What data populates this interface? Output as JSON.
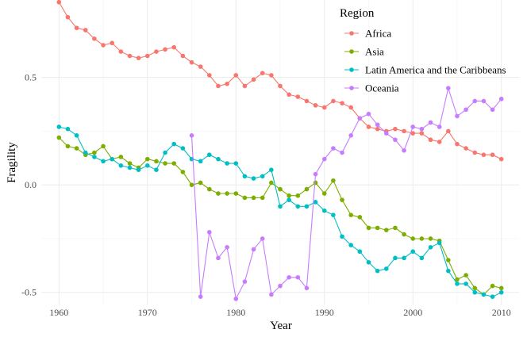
{
  "chart_data": {
    "type": "line",
    "xlabel": "Year",
    "ylabel": "Fragility",
    "xlim": [
      1958,
      2012
    ],
    "ylim": [
      -0.56,
      0.86
    ],
    "x_ticks": [
      1960,
      1970,
      1980,
      1990,
      2000,
      2010
    ],
    "y_ticks": [
      -0.5,
      0.0,
      0.5
    ],
    "y_tick_labels": [
      "-0.5",
      "0.0",
      "0.5"
    ],
    "grid": true,
    "legend": {
      "title": "Region",
      "position": "top-right"
    },
    "series": [
      {
        "name": "Africa",
        "color": "#F8766D",
        "points": [
          [
            1960,
            0.85
          ],
          [
            1961,
            0.78
          ],
          [
            1962,
            0.73
          ],
          [
            1963,
            0.72
          ],
          [
            1964,
            0.68
          ],
          [
            1965,
            0.65
          ],
          [
            1966,
            0.66
          ],
          [
            1967,
            0.62
          ],
          [
            1968,
            0.6
          ],
          [
            1969,
            0.59
          ],
          [
            1970,
            0.6
          ],
          [
            1971,
            0.62
          ],
          [
            1972,
            0.63
          ],
          [
            1973,
            0.64
          ],
          [
            1974,
            0.6
          ],
          [
            1975,
            0.57
          ],
          [
            1976,
            0.55
          ],
          [
            1977,
            0.51
          ],
          [
            1978,
            0.46
          ],
          [
            1979,
            0.47
          ],
          [
            1980,
            0.51
          ],
          [
            1981,
            0.46
          ],
          [
            1982,
            0.49
          ],
          [
            1983,
            0.52
          ],
          [
            1984,
            0.51
          ],
          [
            1985,
            0.46
          ],
          [
            1986,
            0.42
          ],
          [
            1987,
            0.41
          ],
          [
            1988,
            0.39
          ],
          [
            1989,
            0.37
          ],
          [
            1990,
            0.36
          ],
          [
            1991,
            0.39
          ],
          [
            1992,
            0.38
          ],
          [
            1993,
            0.36
          ],
          [
            1994,
            0.31
          ],
          [
            1995,
            0.27
          ],
          [
            1996,
            0.26
          ],
          [
            1997,
            0.25
          ],
          [
            1998,
            0.26
          ],
          [
            1999,
            0.25
          ],
          [
            2000,
            0.24
          ],
          [
            2001,
            0.24
          ],
          [
            2002,
            0.21
          ],
          [
            2003,
            0.2
          ],
          [
            2004,
            0.25
          ],
          [
            2005,
            0.19
          ],
          [
            2006,
            0.17
          ],
          [
            2007,
            0.15
          ],
          [
            2008,
            0.14
          ],
          [
            2009,
            0.14
          ],
          [
            2010,
            0.12
          ]
        ]
      },
      {
        "name": "Asia",
        "color": "#7CAE00",
        "points": [
          [
            1960,
            0.22
          ],
          [
            1961,
            0.18
          ],
          [
            1962,
            0.17
          ],
          [
            1963,
            0.14
          ],
          [
            1964,
            0.15
          ],
          [
            1965,
            0.18
          ],
          [
            1966,
            0.12
          ],
          [
            1967,
            0.13
          ],
          [
            1968,
            0.1
          ],
          [
            1969,
            0.08
          ],
          [
            1970,
            0.12
          ],
          [
            1971,
            0.11
          ],
          [
            1972,
            0.1
          ],
          [
            1973,
            0.1
          ],
          [
            1974,
            0.06
          ],
          [
            1975,
            0.0
          ],
          [
            1976,
            0.01
          ],
          [
            1977,
            -0.02
          ],
          [
            1978,
            -0.04
          ],
          [
            1979,
            -0.04
          ],
          [
            1980,
            -0.04
          ],
          [
            1981,
            -0.06
          ],
          [
            1982,
            -0.06
          ],
          [
            1983,
            -0.06
          ],
          [
            1984,
            0.01
          ],
          [
            1985,
            -0.02
          ],
          [
            1986,
            -0.05
          ],
          [
            1987,
            -0.05
          ],
          [
            1988,
            -0.02
          ],
          [
            1989,
            0.01
          ],
          [
            1990,
            -0.04
          ],
          [
            1991,
            0.02
          ],
          [
            1992,
            -0.07
          ],
          [
            1993,
            -0.14
          ],
          [
            1994,
            -0.15
          ],
          [
            1995,
            -0.2
          ],
          [
            1996,
            -0.2
          ],
          [
            1997,
            -0.21
          ],
          [
            1998,
            -0.2
          ],
          [
            1999,
            -0.23
          ],
          [
            2000,
            -0.25
          ],
          [
            2001,
            -0.25
          ],
          [
            2002,
            -0.25
          ],
          [
            2003,
            -0.26
          ],
          [
            2004,
            -0.35
          ],
          [
            2005,
            -0.44
          ],
          [
            2006,
            -0.42
          ],
          [
            2007,
            -0.48
          ],
          [
            2008,
            -0.51
          ],
          [
            2009,
            -0.47
          ],
          [
            2010,
            -0.48
          ]
        ]
      },
      {
        "name": "Latin America and the Caribbeans",
        "color": "#00BFC4",
        "points": [
          [
            1960,
            0.27
          ],
          [
            1961,
            0.26
          ],
          [
            1962,
            0.23
          ],
          [
            1963,
            0.15
          ],
          [
            1964,
            0.13
          ],
          [
            1965,
            0.11
          ],
          [
            1966,
            0.12
          ],
          [
            1967,
            0.09
          ],
          [
            1968,
            0.08
          ],
          [
            1969,
            0.07
          ],
          [
            1970,
            0.09
          ],
          [
            1971,
            0.07
          ],
          [
            1972,
            0.15
          ],
          [
            1973,
            0.19
          ],
          [
            1974,
            0.17
          ],
          [
            1975,
            0.12
          ],
          [
            1976,
            0.11
          ],
          [
            1977,
            0.14
          ],
          [
            1978,
            0.12
          ],
          [
            1979,
            0.1
          ],
          [
            1980,
            0.1
          ],
          [
            1981,
            0.04
          ],
          [
            1982,
            0.03
          ],
          [
            1983,
            0.04
          ],
          [
            1984,
            0.07
          ],
          [
            1985,
            -0.1
          ],
          [
            1986,
            -0.07
          ],
          [
            1987,
            -0.1
          ],
          [
            1988,
            -0.1
          ],
          [
            1989,
            -0.08
          ],
          [
            1990,
            -0.12
          ],
          [
            1991,
            -0.14
          ],
          [
            1992,
            -0.24
          ],
          [
            1993,
            -0.28
          ],
          [
            1994,
            -0.31
          ],
          [
            1995,
            -0.36
          ],
          [
            1996,
            -0.4
          ],
          [
            1997,
            -0.39
          ],
          [
            1998,
            -0.34
          ],
          [
            1999,
            -0.34
          ],
          [
            2000,
            -0.31
          ],
          [
            2001,
            -0.34
          ],
          [
            2002,
            -0.29
          ],
          [
            2003,
            -0.27
          ],
          [
            2004,
            -0.4
          ],
          [
            2005,
            -0.46
          ],
          [
            2006,
            -0.46
          ],
          [
            2007,
            -0.5
          ],
          [
            2008,
            -0.51
          ],
          [
            2009,
            -0.52
          ],
          [
            2010,
            -0.5
          ]
        ]
      },
      {
        "name": "Oceania",
        "color": "#C77CFF",
        "points": [
          [
            1975,
            0.23
          ],
          [
            1976,
            -0.52
          ],
          [
            1977,
            -0.22
          ],
          [
            1978,
            -0.34
          ],
          [
            1979,
            -0.29
          ],
          [
            1980,
            -0.53
          ],
          [
            1981,
            -0.45
          ],
          [
            1982,
            -0.3
          ],
          [
            1983,
            -0.25
          ],
          [
            1984,
            -0.51
          ],
          [
            1985,
            -0.47
          ],
          [
            1986,
            -0.43
          ],
          [
            1987,
            -0.43
          ],
          [
            1988,
            -0.48
          ],
          [
            1989,
            0.05
          ],
          [
            1990,
            0.12
          ],
          [
            1991,
            0.17
          ],
          [
            1992,
            0.15
          ],
          [
            1993,
            0.23
          ],
          [
            1994,
            0.31
          ],
          [
            1995,
            0.33
          ],
          [
            1996,
            0.28
          ],
          [
            1997,
            0.24
          ],
          [
            1998,
            0.21
          ],
          [
            1999,
            0.16
          ],
          [
            2000,
            0.27
          ],
          [
            2001,
            0.26
          ],
          [
            2002,
            0.29
          ],
          [
            2003,
            0.27
          ],
          [
            2004,
            0.45
          ],
          [
            2005,
            0.32
          ],
          [
            2006,
            0.35
          ],
          [
            2007,
            0.39
          ],
          [
            2008,
            0.39
          ],
          [
            2009,
            0.35
          ],
          [
            2010,
            0.4
          ]
        ]
      }
    ]
  }
}
